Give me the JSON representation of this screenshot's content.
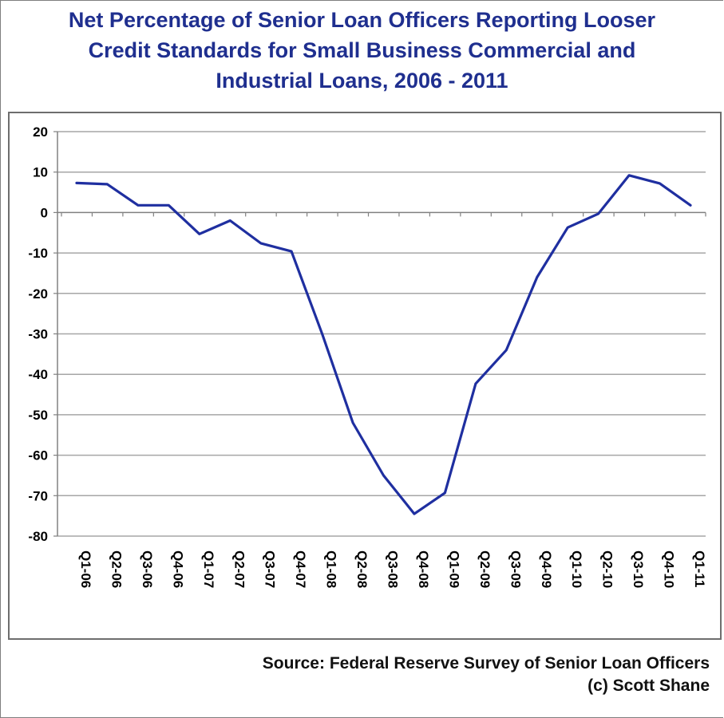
{
  "chart_data": {
    "type": "line",
    "title": "Net Percentage of Senior Loan Officers Reporting Looser Credit Standards for Small Business Commercial and Industrial Loans, 2006 - 2011",
    "title_lines": [
      "Net Percentage of Senior Loan Officers Reporting Looser",
      "Credit Standards for Small Business Commercial and",
      "Industrial Loans, 2006 - 2011"
    ],
    "xlabel": "",
    "ylabel": "",
    "categories": [
      "Q1-06",
      "Q2-06",
      "Q3-06",
      "Q4-06",
      "Q1-07",
      "Q2-07",
      "Q3-07",
      "Q4-07",
      "Q1-08",
      "Q2-08",
      "Q3-08",
      "Q4-08",
      "Q1-09",
      "Q2-09",
      "Q3-09",
      "Q4-09",
      "Q1-10",
      "Q2-10",
      "Q3-10",
      "Q4-10",
      "Q1-11"
    ],
    "series": [
      {
        "values": [
          7.3,
          7.0,
          1.8,
          1.8,
          -5.3,
          -2.0,
          -7.6,
          -9.6,
          -30.0,
          -52.0,
          -65.0,
          -74.5,
          -69.3,
          -42.3,
          -34.0,
          -16.0,
          -3.7,
          -0.3,
          9.2,
          7.2,
          1.8
        ]
      }
    ],
    "ylim": [
      -80,
      20
    ],
    "yticks": [
      20,
      10,
      0,
      -10,
      -20,
      -30,
      -40,
      -50,
      -60,
      -70,
      -80
    ],
    "grid": true,
    "legend": "none",
    "colors": {
      "line": "#1f2fa0",
      "grid": "#a6a6a6",
      "title": "#1f2f8f"
    }
  },
  "footer": {
    "source": "Source:  Federal Reserve Survey of Senior Loan Officers",
    "credit": "(c) Scott Shane"
  }
}
